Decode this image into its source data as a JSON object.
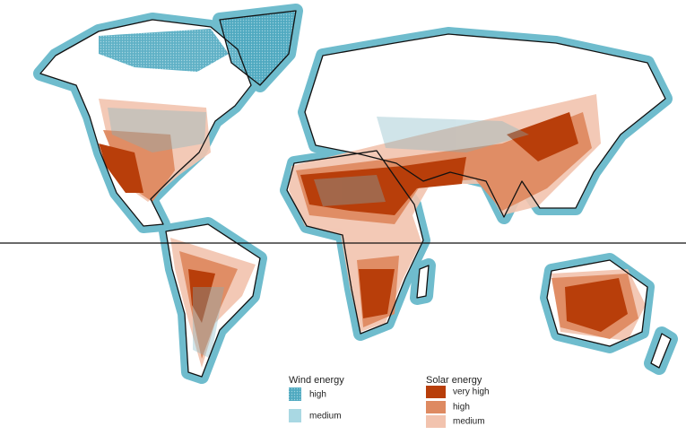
{
  "legends": [
    {
      "title": "Wind energy",
      "items": [
        "high",
        "medium"
      ]
    },
    {
      "title": "Solar energy",
      "items": [
        "very high",
        "high",
        "medium"
      ]
    }
  ]
}
